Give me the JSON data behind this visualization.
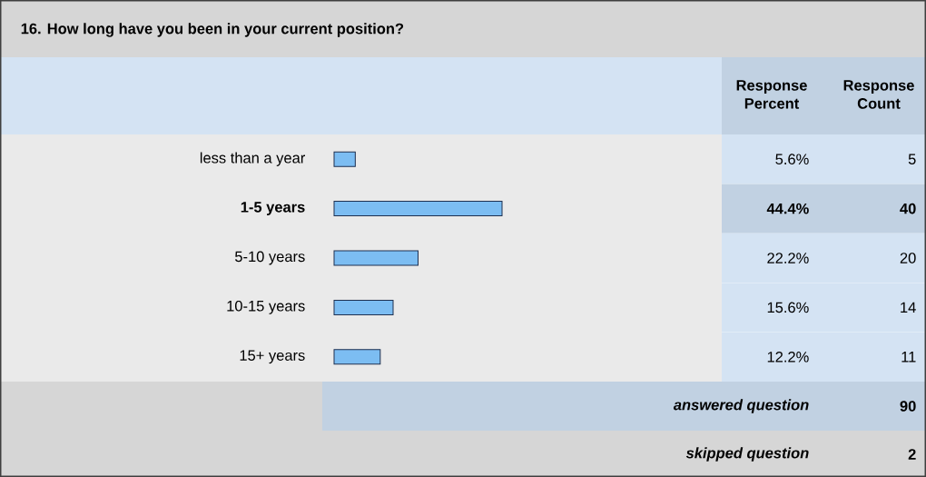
{
  "chart_data": {
    "type": "bar",
    "orientation": "horizontal",
    "title": "16. How long have you been in your current position?",
    "categories": [
      "less than a year",
      "1-5 years",
      "5-10 years",
      "10-15 years",
      "15+ years"
    ],
    "values": [
      5.6,
      44.4,
      22.2,
      15.6,
      12.2
    ],
    "value_labels": [
      "5.6%",
      "44.4%",
      "22.2%",
      "15.6%",
      "12.2%"
    ],
    "color": "#7cbdf2",
    "annotations": [
      "Response Percent",
      "Response Count",
      "5",
      "40",
      "20",
      "14",
      "11",
      "answered question",
      "90",
      "skipped question",
      "2"
    ]
  }
}
